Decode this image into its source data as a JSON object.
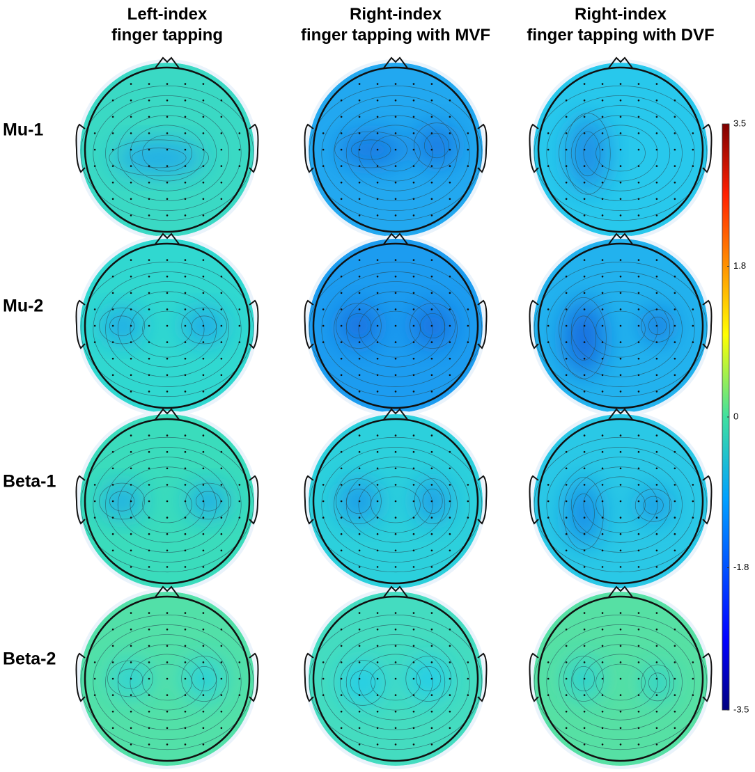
{
  "column_titles": [
    [
      "Left-index",
      "finger tapping"
    ],
    [
      "Right-index",
      "finger tapping with MVF"
    ],
    [
      "Right-index",
      "finger tapping with DVF"
    ]
  ],
  "row_labels": [
    "Mu-1",
    "Mu-2",
    "Beta-1",
    "Beta-2"
  ],
  "colorbar": {
    "lim": [
      -3.5,
      3.5
    ],
    "ticks": [
      3.5,
      1.8,
      0,
      -1.8,
      -3.5
    ]
  }
}
